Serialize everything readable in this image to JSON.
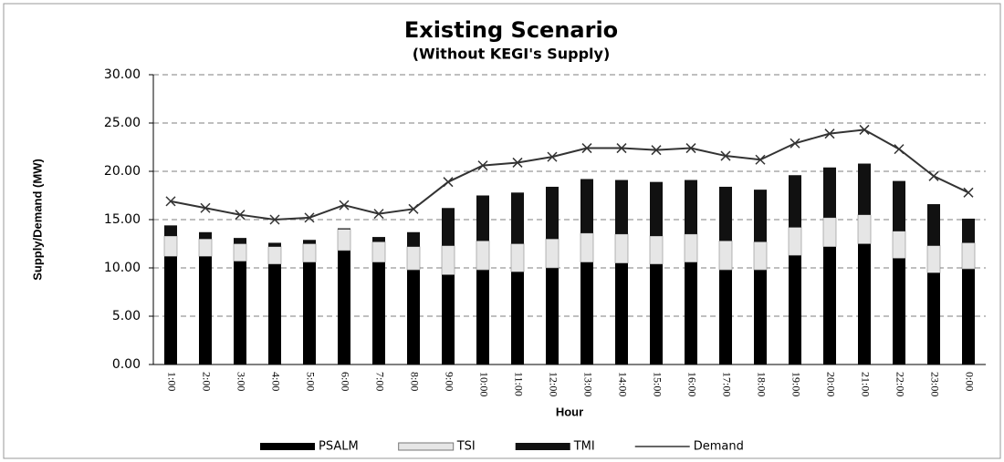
{
  "chart_data": {
    "type": "bar",
    "stacked": true,
    "title": "Existing Scenario",
    "subtitle": "(Without KEGI's Supply)",
    "x_label": "Hour",
    "y_label": "Supply/Demand (MW)",
    "categories": [
      "1:00",
      "2:00",
      "3:00",
      "4:00",
      "5:00",
      "6:00",
      "7:00",
      "8:00",
      "9:00",
      "10:00",
      "11:00",
      "12:00",
      "13:00",
      "14:00",
      "15:00",
      "16:00",
      "17:00",
      "18:00",
      "19:00",
      "20:00",
      "21:00",
      "22:00",
      "23:00",
      "0:00"
    ],
    "series": [
      {
        "name": "PSALM",
        "color": "#000000",
        "values": [
          11.2,
          11.2,
          10.7,
          10.4,
          10.6,
          11.8,
          10.6,
          9.8,
          9.3,
          9.8,
          9.6,
          10.0,
          10.6,
          10.5,
          10.4,
          10.6,
          9.8,
          9.8,
          11.3,
          12.2,
          12.5,
          11.0,
          9.5,
          9.9
        ]
      },
      {
        "name": "TSI",
        "color": "#e6e6e6",
        "values": [
          2.1,
          1.8,
          1.8,
          1.8,
          1.9,
          2.2,
          2.1,
          2.4,
          3.0,
          3.0,
          2.9,
          3.0,
          3.0,
          3.0,
          2.9,
          2.9,
          3.0,
          2.9,
          2.9,
          3.0,
          3.0,
          2.8,
          2.8,
          2.7
        ]
      },
      {
        "name": "TMI",
        "color": "#111111",
        "values": [
          1.1,
          0.7,
          0.6,
          0.4,
          0.4,
          0.1,
          0.5,
          1.5,
          3.9,
          4.7,
          5.3,
          5.4,
          5.6,
          5.6,
          5.6,
          5.6,
          5.6,
          5.4,
          5.4,
          5.2,
          5.3,
          5.2,
          4.3,
          2.5
        ]
      },
      {
        "name": "Demand",
        "type": "line",
        "color": "#333333",
        "values": [
          16.9,
          16.2,
          15.5,
          15.0,
          15.2,
          16.5,
          15.6,
          16.1,
          18.9,
          20.6,
          20.9,
          21.5,
          22.4,
          22.4,
          22.2,
          22.4,
          21.6,
          21.2,
          22.9,
          23.9,
          24.3,
          22.3,
          19.5,
          17.8
        ]
      }
    ],
    "ylim": [
      0,
      30
    ],
    "yticks": [
      {
        "value": 0,
        "label": "0.00"
      },
      {
        "value": 5,
        "label": "5.00"
      },
      {
        "value": 10,
        "label": "10.00"
      },
      {
        "value": 15,
        "label": "15.00"
      },
      {
        "value": 20,
        "label": "20.00"
      },
      {
        "value": 25,
        "label": "25.00"
      },
      {
        "value": 30,
        "label": "30.00"
      }
    ],
    "grid": true,
    "legend": "bottom"
  }
}
